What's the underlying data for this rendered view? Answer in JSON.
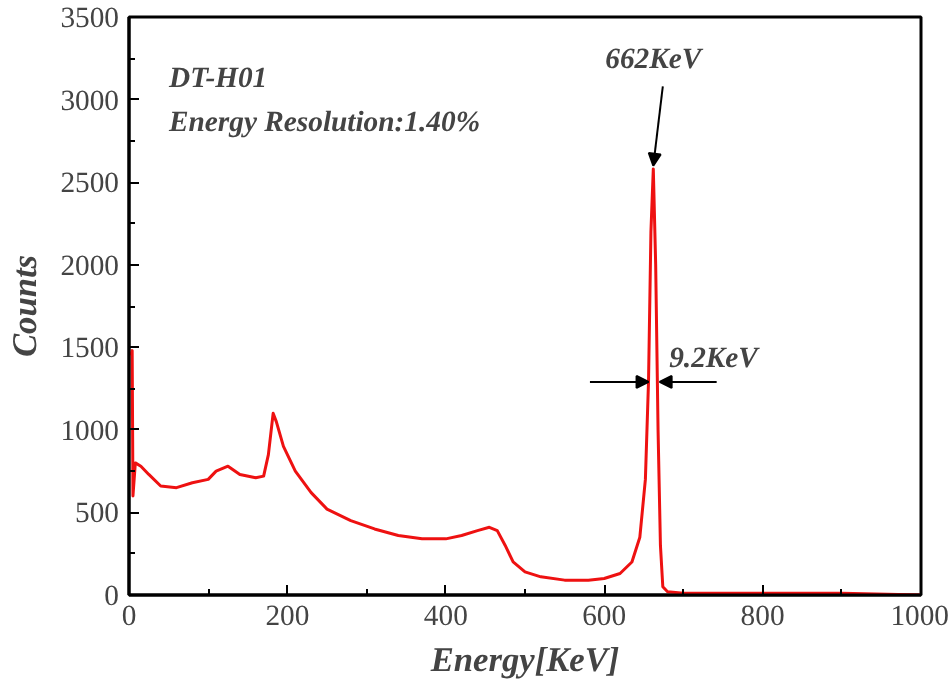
{
  "chart_data": {
    "type": "line",
    "xlabel": "Energy[KeV]",
    "ylabel": "Counts",
    "x": [
      2,
      4,
      5,
      8,
      15,
      25,
      40,
      60,
      80,
      100,
      110,
      125,
      140,
      160,
      170,
      176,
      182,
      186,
      195,
      210,
      230,
      250,
      280,
      310,
      340,
      370,
      400,
      420,
      440,
      455,
      465,
      475,
      485,
      500,
      520,
      550,
      580,
      600,
      620,
      635,
      645,
      652,
      656,
      659,
      662,
      665,
      668,
      671,
      674,
      680,
      700,
      800,
      900,
      1000
    ],
    "series": [
      {
        "color": "#ee1111",
        "values": [
          1450,
          1480,
          600,
          800,
          780,
          730,
          660,
          650,
          680,
          700,
          750,
          780,
          730,
          710,
          720,
          850,
          1100,
          1050,
          900,
          750,
          620,
          520,
          450,
          400,
          360,
          340,
          340,
          360,
          390,
          410,
          390,
          300,
          200,
          140,
          110,
          90,
          90,
          100,
          130,
          200,
          350,
          700,
          1300,
          2200,
          2580,
          2000,
          1000,
          300,
          50,
          20,
          10,
          10,
          10,
          0
        ]
      }
    ],
    "xlim": [
      0,
      1000
    ],
    "ylim": [
      0,
      3500
    ],
    "xticks": [
      0,
      {
        "value": 100,
        "label": null
      },
      200,
      {
        "value": 300,
        "label": null
      },
      400,
      {
        "value": 500,
        "label": null
      },
      600,
      {
        "value": 700,
        "label": null
      },
      800,
      {
        "value": 900,
        "label": null
      },
      1000
    ],
    "yticks": [
      0,
      {
        "value": 250,
        "label": null
      },
      500,
      {
        "value": 750,
        "label": null
      },
      1000,
      {
        "value": 1250,
        "label": null
      },
      1500,
      {
        "value": 1750,
        "label": null
      },
      2000,
      {
        "value": 2250,
        "label": null
      },
      2500,
      {
        "value": 2750,
        "label": null
      },
      3000,
      {
        "value": 3250,
        "label": null
      },
      3500
    ],
    "annotations": [
      "DT-H01",
      "Energy Resolution:1.40%",
      {
        "text": "662KeV",
        "x": 662,
        "y": 2580
      },
      {
        "text": "9.2KeV",
        "x": 662,
        "y": 1290
      }
    ],
    "grid": false,
    "line_style": "solid",
    "marker": "none"
  }
}
